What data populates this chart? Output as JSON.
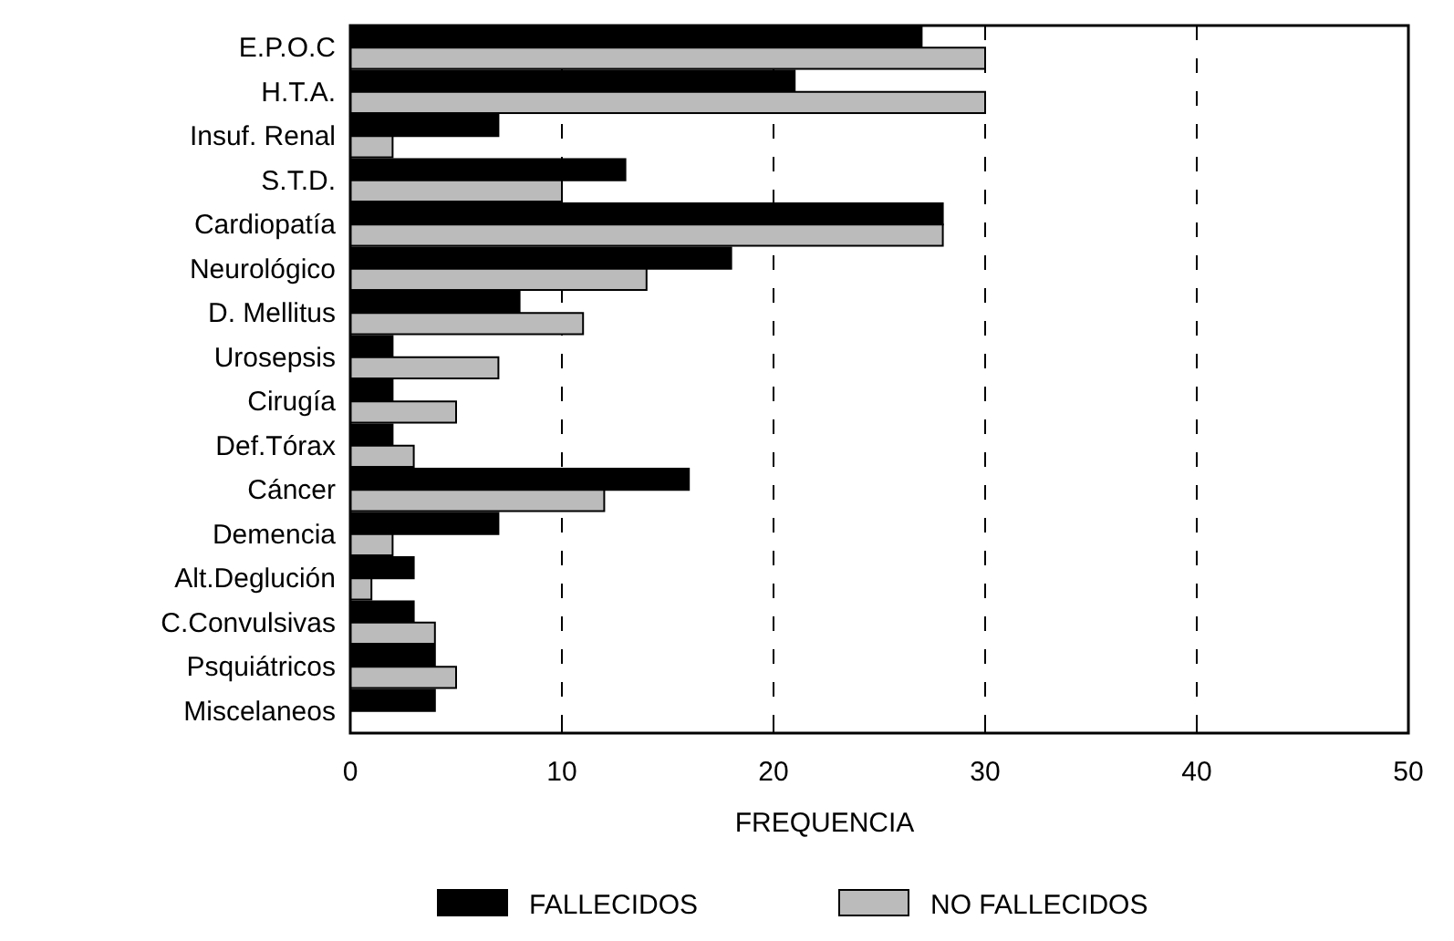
{
  "chart_data": {
    "type": "bar",
    "orientation": "horizontal",
    "xlabel": "FREQUENCIA",
    "categories": [
      "E.P.O.C",
      "H.T.A.",
      "Insuf. Renal",
      "S.T.D.",
      "Cardiopatía",
      "Neurológico",
      "D. Mellitus",
      "Urosepsis",
      "Cirugía",
      "Def.Tórax",
      "Cáncer",
      "Demencia",
      "Alt.Deglución",
      "C.Convulsivas",
      "Psquiátricos",
      "Miscelaneos"
    ],
    "series": [
      {
        "name": "FALLECIDOS",
        "color": "#000000",
        "values": [
          27,
          21,
          7,
          13,
          28,
          18,
          8,
          2,
          2,
          2,
          16,
          7,
          3,
          3,
          4,
          4
        ]
      },
      {
        "name": "NO FALLECIDOS",
        "color": "#bbbbbb",
        "values": [
          30,
          30,
          2,
          10,
          28,
          14,
          11,
          7,
          5,
          3,
          12,
          2,
          1,
          4,
          5,
          null
        ]
      }
    ],
    "xlim": [
      0,
      50
    ],
    "xticks": [
      0,
      10,
      20,
      30,
      40,
      50
    ],
    "grid": "x",
    "legend": "bottom"
  }
}
